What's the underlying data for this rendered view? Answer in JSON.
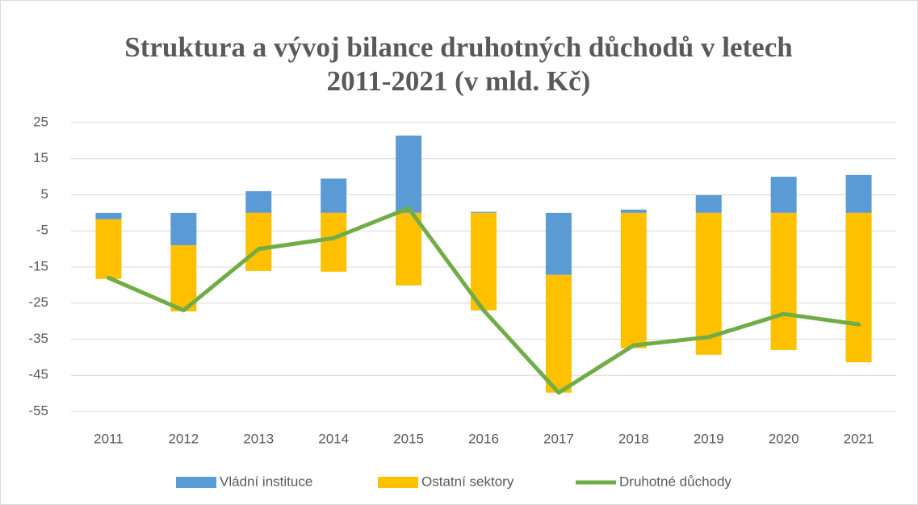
{
  "chart_data": {
    "type": "bar",
    "title": "Struktura a vývoj bilance druhotných důchodů v letech 2011-2021 (v mld. Kč)",
    "categories": [
      "2011",
      "2012",
      "2013",
      "2014",
      "2015",
      "2016",
      "2017",
      "2018",
      "2019",
      "2020",
      "2021"
    ],
    "series": [
      {
        "name": "Vládní instituce",
        "color": "#5b9bd5",
        "type": "bar",
        "values": [
          -1.8,
          -9,
          6,
          9.5,
          21.4,
          0.3,
          -17.2,
          0.9,
          4.9,
          10,
          10.5
        ]
      },
      {
        "name": "Ostatní sektory",
        "color": "#ffc000",
        "type": "bar",
        "values": [
          -16.5,
          -18.3,
          -16.1,
          -16.3,
          -20.1,
          -27,
          -32.6,
          -37.5,
          -39.3,
          -38,
          -41.4
        ]
      },
      {
        "name": "Druhotné důchody",
        "color": "#70ad47",
        "type": "line",
        "values": [
          -18,
          -27,
          -10,
          -7,
          1.3,
          -27,
          -49.8,
          -36.7,
          -34.4,
          -28,
          -30.9
        ]
      }
    ],
    "ylim": [
      -55,
      25
    ],
    "yticks": [
      25,
      15,
      5,
      -5,
      -15,
      -25,
      -35,
      -45,
      -55
    ],
    "grid": true,
    "stacked": true,
    "legend": "bottom"
  }
}
